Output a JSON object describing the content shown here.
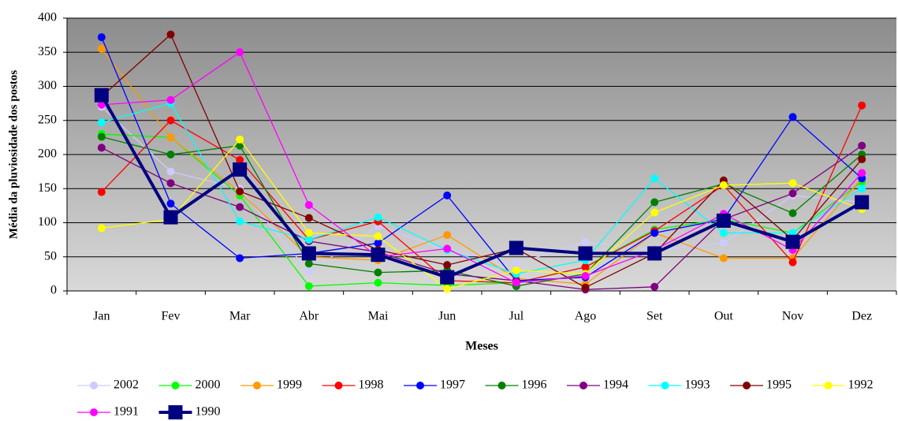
{
  "chart_data": {
    "type": "line",
    "x_label": "Meses",
    "y_label": "Média da pluviosidade dos postos",
    "categories": [
      "Jan",
      "Fev",
      "Mar",
      "Abr",
      "Mai",
      "Jun",
      "Jul",
      "Ago",
      "Set",
      "Out",
      "Nov",
      "Dez"
    ],
    "ylim": [
      0,
      400
    ],
    "yticks": [
      0,
      50,
      100,
      150,
      200,
      250,
      300,
      350,
      400
    ],
    "grid": true,
    "legend": "bottom",
    "series": [
      {
        "name": "2002",
        "color": "#ccccff",
        "marker": "circle",
        "values": [
          270,
          175,
          150,
          28,
          95,
          60,
          40,
          72,
          60,
          70,
          140,
          130
        ]
      },
      {
        "name": "2000",
        "color": "#00ff00",
        "marker": "circle",
        "values": [
          230,
          225,
          140,
          7,
          12,
          8,
          12,
          35,
          90,
          105,
          85,
          160
        ]
      },
      {
        "name": "1999",
        "color": "#ff9900",
        "marker": "circle",
        "values": [
          355,
          225,
          145,
          50,
          45,
          82,
          18,
          10,
          85,
          48,
          48,
          165
        ]
      },
      {
        "name": "1998",
        "color": "#ff0000",
        "marker": "circle",
        "values": [
          145,
          250,
          192,
          75,
          102,
          15,
          12,
          35,
          88,
          155,
          42,
          272
        ]
      },
      {
        "name": "1997",
        "color": "#0000ff",
        "marker": "circle",
        "values": [
          372,
          128,
          48,
          55,
          70,
          140,
          15,
          20,
          85,
          105,
          255,
          165
        ]
      },
      {
        "name": "1996",
        "color": "#008000",
        "marker": "circle",
        "values": [
          226,
          200,
          213,
          40,
          27,
          30,
          7,
          25,
          130,
          157,
          114,
          200
        ]
      },
      {
        "name": "1994",
        "color": "#800080",
        "marker": "circle",
        "values": [
          210,
          158,
          123,
          73,
          57,
          25,
          15,
          2,
          6,
          105,
          143,
          213
        ]
      },
      {
        "name": "1993",
        "color": "#00ffff",
        "marker": "circle",
        "values": [
          247,
          275,
          102,
          75,
          108,
          60,
          25,
          45,
          165,
          85,
          85,
          150
        ]
      },
      {
        "name": "1995",
        "color": "#800000",
        "marker": "circle",
        "values": [
          285,
          376,
          146,
          107,
          60,
          38,
          62,
          5,
          55,
          162,
          75,
          193
        ]
      },
      {
        "name": "1992",
        "color": "#ffff00",
        "marker": "circle",
        "values": [
          92,
          105,
          222,
          85,
          80,
          3,
          30,
          25,
          115,
          155,
          158,
          120
        ]
      },
      {
        "name": "1991",
        "color": "#ff00ff",
        "marker": "circle",
        "values": [
          273,
          280,
          350,
          126,
          50,
          62,
          12,
          22,
          60,
          113,
          60,
          173
        ]
      },
      {
        "name": "1990",
        "color": "#000080",
        "marker": "square",
        "values": [
          287,
          108,
          178,
          55,
          53,
          20,
          63,
          55,
          55,
          103,
          72,
          130
        ]
      }
    ]
  }
}
